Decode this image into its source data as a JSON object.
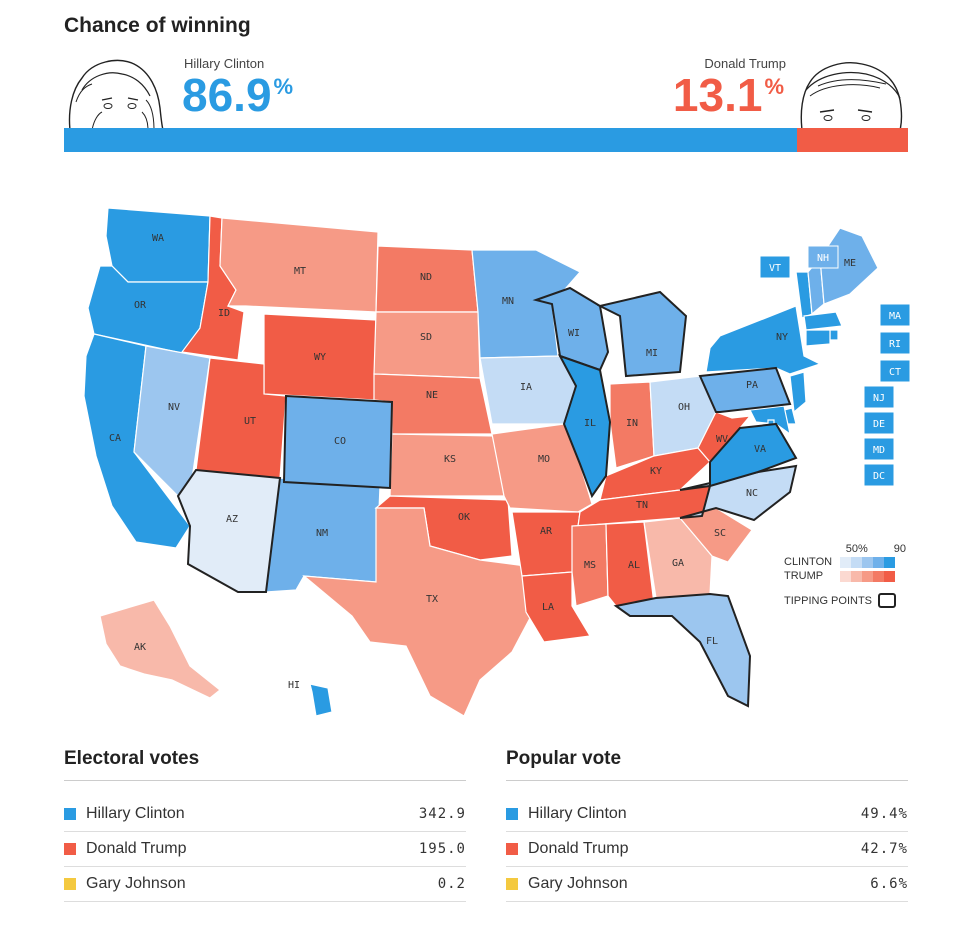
{
  "header": {
    "title": "Chance of winning",
    "clinton": {
      "name": "Hillary Clinton",
      "pct": "86.9",
      "pct_sign": "%",
      "share": 86.9
    },
    "trump": {
      "name": "Donald Trump",
      "pct": "13.1",
      "pct_sign": "%",
      "share": 13.1
    }
  },
  "colors": {
    "clinton": "#2a9be2",
    "trump": "#f15c46",
    "johnson": "#f4c93f",
    "dem_ramp": [
      "#e1ecf8",
      "#c4dcf5",
      "#9cc6ef",
      "#6eb0ea",
      "#2a9be2"
    ],
    "rep_ramp": [
      "#fbd9d1",
      "#f8b9aa",
      "#f69a86",
      "#f37a64",
      "#f15c46"
    ]
  },
  "map": {
    "states": [
      {
        "code": "WA",
        "lean": "D",
        "strength": 5,
        "tipping": false
      },
      {
        "code": "OR",
        "lean": "D",
        "strength": 5,
        "tipping": false
      },
      {
        "code": "CA",
        "lean": "D",
        "strength": 5,
        "tipping": false
      },
      {
        "code": "NV",
        "lean": "D",
        "strength": 3,
        "tipping": false
      },
      {
        "code": "ID",
        "lean": "R",
        "strength": 5,
        "tipping": false
      },
      {
        "code": "MT",
        "lean": "R",
        "strength": 3,
        "tipping": false
      },
      {
        "code": "WY",
        "lean": "R",
        "strength": 5,
        "tipping": false
      },
      {
        "code": "UT",
        "lean": "R",
        "strength": 5,
        "tipping": false
      },
      {
        "code": "AZ",
        "lean": "D",
        "strength": 1,
        "tipping": true
      },
      {
        "code": "CO",
        "lean": "D",
        "strength": 4,
        "tipping": true
      },
      {
        "code": "NM",
        "lean": "D",
        "strength": 4,
        "tipping": false
      },
      {
        "code": "ND",
        "lean": "R",
        "strength": 4,
        "tipping": false
      },
      {
        "code": "SD",
        "lean": "R",
        "strength": 3,
        "tipping": false
      },
      {
        "code": "NE",
        "lean": "R",
        "strength": 4,
        "tipping": false
      },
      {
        "code": "KS",
        "lean": "R",
        "strength": 3,
        "tipping": false
      },
      {
        "code": "OK",
        "lean": "R",
        "strength": 5,
        "tipping": false
      },
      {
        "code": "TX",
        "lean": "R",
        "strength": 3,
        "tipping": false
      },
      {
        "code": "MN",
        "lean": "D",
        "strength": 4,
        "tipping": false
      },
      {
        "code": "IA",
        "lean": "D",
        "strength": 2,
        "tipping": false
      },
      {
        "code": "MO",
        "lean": "R",
        "strength": 3,
        "tipping": false
      },
      {
        "code": "AR",
        "lean": "R",
        "strength": 5,
        "tipping": false
      },
      {
        "code": "LA",
        "lean": "R",
        "strength": 5,
        "tipping": false
      },
      {
        "code": "WI",
        "lean": "D",
        "strength": 4,
        "tipping": true
      },
      {
        "code": "IL",
        "lean": "D",
        "strength": 5,
        "tipping": true
      },
      {
        "code": "MI",
        "lean": "D",
        "strength": 4,
        "tipping": true
      },
      {
        "code": "IN",
        "lean": "R",
        "strength": 4,
        "tipping": false
      },
      {
        "code": "OH",
        "lean": "D",
        "strength": 2,
        "tipping": false
      },
      {
        "code": "KY",
        "lean": "R",
        "strength": 5,
        "tipping": false
      },
      {
        "code": "TN",
        "lean": "R",
        "strength": 5,
        "tipping": false
      },
      {
        "code": "MS",
        "lean": "R",
        "strength": 4,
        "tipping": false
      },
      {
        "code": "AL",
        "lean": "R",
        "strength": 5,
        "tipping": false
      },
      {
        "code": "GA",
        "lean": "R",
        "strength": 2,
        "tipping": false
      },
      {
        "code": "FL",
        "lean": "D",
        "strength": 3,
        "tipping": true
      },
      {
        "code": "SC",
        "lean": "R",
        "strength": 3,
        "tipping": false
      },
      {
        "code": "NC",
        "lean": "D",
        "strength": 2,
        "tipping": true
      },
      {
        "code": "VA",
        "lean": "D",
        "strength": 5,
        "tipping": true
      },
      {
        "code": "WV",
        "lean": "R",
        "strength": 5,
        "tipping": false
      },
      {
        "code": "PA",
        "lean": "D",
        "strength": 4,
        "tipping": true
      },
      {
        "code": "NY",
        "lean": "D",
        "strength": 5,
        "tipping": false
      },
      {
        "code": "VT",
        "lean": "D",
        "strength": 5,
        "tipping": false
      },
      {
        "code": "NH",
        "lean": "D",
        "strength": 4,
        "tipping": false
      },
      {
        "code": "ME",
        "lean": "D",
        "strength": 4,
        "tipping": false
      },
      {
        "code": "MA",
        "lean": "D",
        "strength": 5,
        "tipping": false
      },
      {
        "code": "RI",
        "lean": "D",
        "strength": 5,
        "tipping": false
      },
      {
        "code": "CT",
        "lean": "D",
        "strength": 5,
        "tipping": false
      },
      {
        "code": "NJ",
        "lean": "D",
        "strength": 5,
        "tipping": false
      },
      {
        "code": "DE",
        "lean": "D",
        "strength": 5,
        "tipping": false
      },
      {
        "code": "MD",
        "lean": "D",
        "strength": 5,
        "tipping": false
      },
      {
        "code": "DC",
        "lean": "D",
        "strength": 5,
        "tipping": false
      },
      {
        "code": "AK",
        "lean": "R",
        "strength": 2,
        "tipping": false
      },
      {
        "code": "HI",
        "lean": "D",
        "strength": 5,
        "tipping": false
      }
    ]
  },
  "legend": {
    "scale_low": "50%",
    "scale_high": "90",
    "clinton_label": "CLINTON",
    "trump_label": "TRUMP",
    "tipping_label": "TIPPING POINTS"
  },
  "electoral": {
    "title": "Electoral votes",
    "rows": [
      {
        "name": "Hillary Clinton",
        "value": "342.9"
      },
      {
        "name": "Donald Trump",
        "value": "195.0"
      },
      {
        "name": "Gary Johnson",
        "value": "0.2"
      }
    ]
  },
  "popular": {
    "title": "Popular vote",
    "rows": [
      {
        "name": "Hillary Clinton",
        "value": "49.4%"
      },
      {
        "name": "Donald Trump",
        "value": "42.7%"
      },
      {
        "name": "Gary Johnson",
        "value": "6.6%"
      }
    ]
  }
}
